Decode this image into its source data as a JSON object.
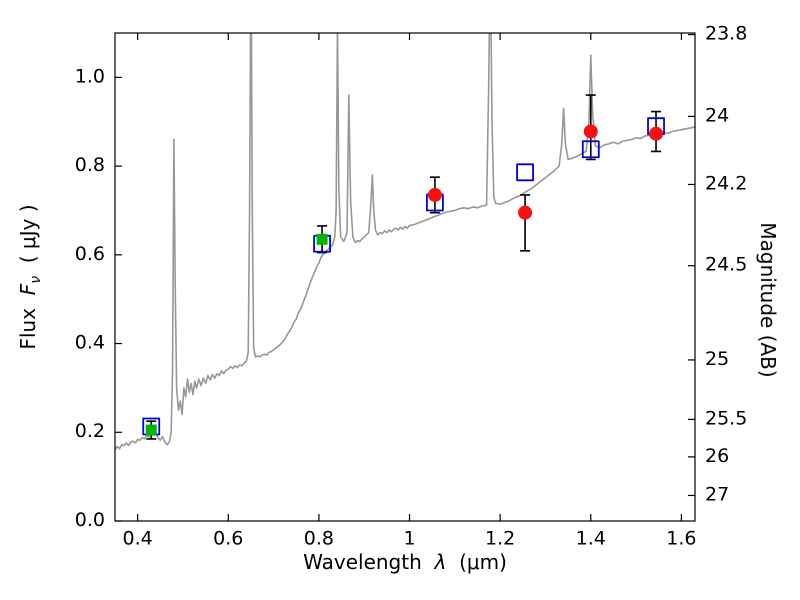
{
  "figure": {
    "background": "#ffffff",
    "frame_color": "#000000",
    "axes": {
      "xlabel": {
        "prefix": "Wavelength",
        "symbol": "λ",
        "unit": "(μm)"
      },
      "ylabel_left": {
        "prefix": "Flux",
        "symbol": "F",
        "subscript": "ν",
        "unit": "( μJy )"
      },
      "ylabel_right": "Magnitude (AB)"
    }
  },
  "chart_data": {
    "type": "line",
    "title": "",
    "xlabel": "Wavelength λ (μm)",
    "ylabel": "Flux Fν ( μJy )",
    "ylabel_right": "Magnitude (AB)",
    "xlim": [
      0.35,
      1.63
    ],
    "ylim": [
      0.0,
      1.1
    ],
    "grid": false,
    "legend": "none",
    "tick_direction": "in",
    "x_ticks": {
      "values": [
        0.4,
        0.6,
        0.8,
        1.0,
        1.2,
        1.4,
        1.6
      ],
      "labels": [
        "0.4",
        "0.6",
        "0.8",
        "1",
        "1.2",
        "1.4",
        "1.6"
      ]
    },
    "y_ticks_left": {
      "values": [
        0.0,
        0.2,
        0.4,
        0.6,
        0.8,
        1.0
      ],
      "labels": [
        "0.0",
        "0.2",
        "0.4",
        "0.6",
        "0.8",
        "1.0"
      ]
    },
    "y_ticks_right": {
      "magnitudes": [
        23.8,
        24,
        24.2,
        24.5,
        25,
        25.5,
        26,
        27
      ],
      "labels": [
        "23.8",
        "24",
        "24.2",
        "24.5",
        "25",
        "25.5",
        "26",
        "27"
      ],
      "zero_point": 23.9,
      "note": "flux = 10^((23.9 - mag)/2.5) μJy"
    },
    "series": {
      "spectrum": {
        "name": "model-spectrum",
        "kind": "line",
        "color": "#979797",
        "linewidth": 1.6,
        "points": [
          [
            0.35,
            0.16
          ],
          [
            0.355,
            0.168
          ],
          [
            0.36,
            0.163
          ],
          [
            0.365,
            0.172
          ],
          [
            0.37,
            0.17
          ],
          [
            0.375,
            0.176
          ],
          [
            0.38,
            0.17
          ],
          [
            0.385,
            0.178
          ],
          [
            0.39,
            0.18
          ],
          [
            0.395,
            0.176
          ],
          [
            0.4,
            0.184
          ],
          [
            0.405,
            0.182
          ],
          [
            0.41,
            0.188
          ],
          [
            0.415,
            0.185
          ],
          [
            0.42,
            0.192
          ],
          [
            0.425,
            0.19
          ],
          [
            0.43,
            0.196
          ],
          [
            0.435,
            0.2
          ],
          [
            0.44,
            0.196
          ],
          [
            0.445,
            0.188
          ],
          [
            0.45,
            0.182
          ],
          [
            0.455,
            0.19
          ],
          [
            0.46,
            0.178
          ],
          [
            0.465,
            0.172
          ],
          [
            0.47,
            0.178
          ],
          [
            0.474,
            0.2
          ],
          [
            0.477,
            0.34
          ],
          [
            0.48,
            0.86
          ],
          [
            0.483,
            0.52
          ],
          [
            0.486,
            0.3
          ],
          [
            0.49,
            0.25
          ],
          [
            0.494,
            0.27
          ],
          [
            0.498,
            0.24
          ],
          [
            0.502,
            0.3
          ],
          [
            0.506,
            0.28
          ],
          [
            0.51,
            0.32
          ],
          [
            0.514,
            0.29
          ],
          [
            0.518,
            0.31
          ],
          [
            0.522,
            0.285
          ],
          [
            0.526,
            0.315
          ],
          [
            0.53,
            0.3
          ],
          [
            0.535,
            0.32
          ],
          [
            0.54,
            0.305
          ],
          [
            0.545,
            0.322
          ],
          [
            0.55,
            0.31
          ],
          [
            0.555,
            0.328
          ],
          [
            0.56,
            0.318
          ],
          [
            0.565,
            0.33
          ],
          [
            0.57,
            0.322
          ],
          [
            0.575,
            0.332
          ],
          [
            0.58,
            0.328
          ],
          [
            0.585,
            0.338
          ],
          [
            0.59,
            0.332
          ],
          [
            0.595,
            0.34
          ],
          [
            0.6,
            0.342
          ],
          [
            0.605,
            0.348
          ],
          [
            0.61,
            0.344
          ],
          [
            0.615,
            0.35
          ],
          [
            0.62,
            0.346
          ],
          [
            0.625,
            0.352
          ],
          [
            0.63,
            0.35
          ],
          [
            0.635,
            0.356
          ],
          [
            0.64,
            0.36
          ],
          [
            0.644,
            0.38
          ],
          [
            0.647,
            0.7
          ],
          [
            0.65,
            1.3
          ],
          [
            0.653,
            0.7
          ],
          [
            0.656,
            0.39
          ],
          [
            0.66,
            0.37
          ],
          [
            0.665,
            0.372
          ],
          [
            0.67,
            0.37
          ],
          [
            0.675,
            0.374
          ],
          [
            0.68,
            0.376
          ],
          [
            0.685,
            0.374
          ],
          [
            0.69,
            0.38
          ],
          [
            0.695,
            0.382
          ],
          [
            0.7,
            0.386
          ],
          [
            0.705,
            0.39
          ],
          [
            0.71,
            0.394
          ],
          [
            0.715,
            0.398
          ],
          [
            0.72,
            0.404
          ],
          [
            0.725,
            0.41
          ],
          [
            0.73,
            0.42
          ],
          [
            0.735,
            0.428
          ],
          [
            0.74,
            0.436
          ],
          [
            0.745,
            0.448
          ],
          [
            0.75,
            0.455
          ],
          [
            0.755,
            0.47
          ],
          [
            0.76,
            0.478
          ],
          [
            0.765,
            0.492
          ],
          [
            0.77,
            0.505
          ],
          [
            0.775,
            0.52
          ],
          [
            0.78,
            0.535
          ],
          [
            0.785,
            0.548
          ],
          [
            0.79,
            0.56
          ],
          [
            0.795,
            0.572
          ],
          [
            0.8,
            0.582
          ],
          [
            0.805,
            0.595
          ],
          [
            0.81,
            0.602
          ],
          [
            0.815,
            0.608
          ],
          [
            0.82,
            0.612
          ],
          [
            0.825,
            0.618
          ],
          [
            0.83,
            0.622
          ],
          [
            0.835,
            0.64
          ],
          [
            0.838,
            0.7
          ],
          [
            0.841,
            1.12
          ],
          [
            0.844,
            0.75
          ],
          [
            0.848,
            0.64
          ],
          [
            0.855,
            0.63
          ],
          [
            0.862,
            0.65
          ],
          [
            0.866,
            0.96
          ],
          [
            0.87,
            0.72
          ],
          [
            0.875,
            0.64
          ],
          [
            0.88,
            0.628
          ],
          [
            0.885,
            0.632
          ],
          [
            0.89,
            0.63
          ],
          [
            0.895,
            0.636
          ],
          [
            0.9,
            0.64
          ],
          [
            0.905,
            0.645
          ],
          [
            0.91,
            0.65
          ],
          [
            0.915,
            0.72
          ],
          [
            0.918,
            0.78
          ],
          [
            0.921,
            0.7
          ],
          [
            0.925,
            0.655
          ],
          [
            0.93,
            0.645
          ],
          [
            0.935,
            0.65
          ],
          [
            0.94,
            0.648
          ],
          [
            0.945,
            0.654
          ],
          [
            0.95,
            0.65
          ],
          [
            0.955,
            0.656
          ],
          [
            0.96,
            0.652
          ],
          [
            0.965,
            0.658
          ],
          [
            0.97,
            0.66
          ],
          [
            0.975,
            0.656
          ],
          [
            0.98,
            0.662
          ],
          [
            0.985,
            0.658
          ],
          [
            0.99,
            0.664
          ],
          [
            0.995,
            0.66
          ],
          [
            1.0,
            0.666
          ],
          [
            1.01,
            0.668
          ],
          [
            1.02,
            0.672
          ],
          [
            1.03,
            0.676
          ],
          [
            1.04,
            0.68
          ],
          [
            1.05,
            0.684
          ],
          [
            1.06,
            0.688
          ],
          [
            1.07,
            0.692
          ],
          [
            1.08,
            0.696
          ],
          [
            1.09,
            0.698
          ],
          [
            1.1,
            0.7
          ],
          [
            1.11,
            0.704
          ],
          [
            1.12,
            0.706
          ],
          [
            1.13,
            0.704
          ],
          [
            1.14,
            0.708
          ],
          [
            1.15,
            0.706
          ],
          [
            1.16,
            0.71
          ],
          [
            1.17,
            0.712
          ],
          [
            1.175,
            1.0
          ],
          [
            1.178,
            1.3
          ],
          [
            1.182,
            0.9
          ],
          [
            1.186,
            0.73
          ],
          [
            1.19,
            0.716
          ],
          [
            1.2,
            0.714
          ],
          [
            1.21,
            0.718
          ],
          [
            1.22,
            0.722
          ],
          [
            1.23,
            0.728
          ],
          [
            1.24,
            0.732
          ],
          [
            1.25,
            0.738
          ],
          [
            1.26,
            0.744
          ],
          [
            1.27,
            0.75
          ],
          [
            1.28,
            0.758
          ],
          [
            1.29,
            0.766
          ],
          [
            1.3,
            0.774
          ],
          [
            1.31,
            0.782
          ],
          [
            1.32,
            0.79
          ],
          [
            1.33,
            0.8
          ],
          [
            1.336,
            0.85
          ],
          [
            1.34,
            0.93
          ],
          [
            1.344,
            0.85
          ],
          [
            1.35,
            0.815
          ],
          [
            1.36,
            0.818
          ],
          [
            1.37,
            0.822
          ],
          [
            1.38,
            0.828
          ],
          [
            1.39,
            0.834
          ],
          [
            1.396,
            0.9
          ],
          [
            1.4,
            1.05
          ],
          [
            1.404,
            0.92
          ],
          [
            1.41,
            0.845
          ],
          [
            1.42,
            0.842
          ],
          [
            1.43,
            0.848
          ],
          [
            1.44,
            0.85
          ],
          [
            1.45,
            0.854
          ],
          [
            1.46,
            0.85
          ],
          [
            1.47,
            0.856
          ],
          [
            1.48,
            0.858
          ],
          [
            1.49,
            0.86
          ],
          [
            1.5,
            0.864
          ],
          [
            1.51,
            0.862
          ],
          [
            1.52,
            0.868
          ],
          [
            1.53,
            0.87
          ],
          [
            1.54,
            0.874
          ],
          [
            1.55,
            0.872
          ],
          [
            1.56,
            0.876
          ],
          [
            1.57,
            0.874
          ],
          [
            1.58,
            0.878
          ],
          [
            1.59,
            0.88
          ],
          [
            1.6,
            0.882
          ],
          [
            1.61,
            0.884
          ],
          [
            1.62,
            0.886
          ],
          [
            1.63,
            0.888
          ]
        ]
      },
      "blue_open_squares": {
        "name": "photometry-open-squares",
        "kind": "scatter",
        "marker": "square-open",
        "color": "#0000e0",
        "size": 16,
        "points": [
          {
            "x": 0.43,
            "y": 0.213
          },
          {
            "x": 0.807,
            "y": 0.625
          },
          {
            "x": 1.056,
            "y": 0.718
          },
          {
            "x": 1.255,
            "y": 0.786
          },
          {
            "x": 1.4,
            "y": 0.838
          },
          {
            "x": 1.544,
            "y": 0.89
          }
        ]
      },
      "green_filled_squares": {
        "name": "photometry-green-squares",
        "kind": "scatter",
        "marker": "square-filled",
        "color": "#00b400",
        "errorbar_color": "#000000",
        "size": 11,
        "points": [
          {
            "x": 0.43,
            "y": 0.205,
            "err_lo": 0.02,
            "err_hi": 0.02
          },
          {
            "x": 0.807,
            "y": 0.635,
            "err_lo": 0.03,
            "err_hi": 0.03
          }
        ]
      },
      "red_filled_circles": {
        "name": "photometry-red-circles",
        "kind": "scatter",
        "marker": "circle-filled",
        "color": "#f81010",
        "errorbar_color": "#000000",
        "size": 14,
        "points": [
          {
            "x": 1.056,
            "y": 0.735,
            "err_lo": 0.04,
            "err_hi": 0.04
          },
          {
            "x": 1.255,
            "y": 0.695,
            "err_lo": 0.086,
            "err_hi": 0.04
          },
          {
            "x": 1.4,
            "y": 0.878,
            "err_lo": 0.063,
            "err_hi": 0.082
          },
          {
            "x": 1.544,
            "y": 0.873,
            "err_lo": 0.04,
            "err_hi": 0.05
          }
        ]
      }
    }
  }
}
